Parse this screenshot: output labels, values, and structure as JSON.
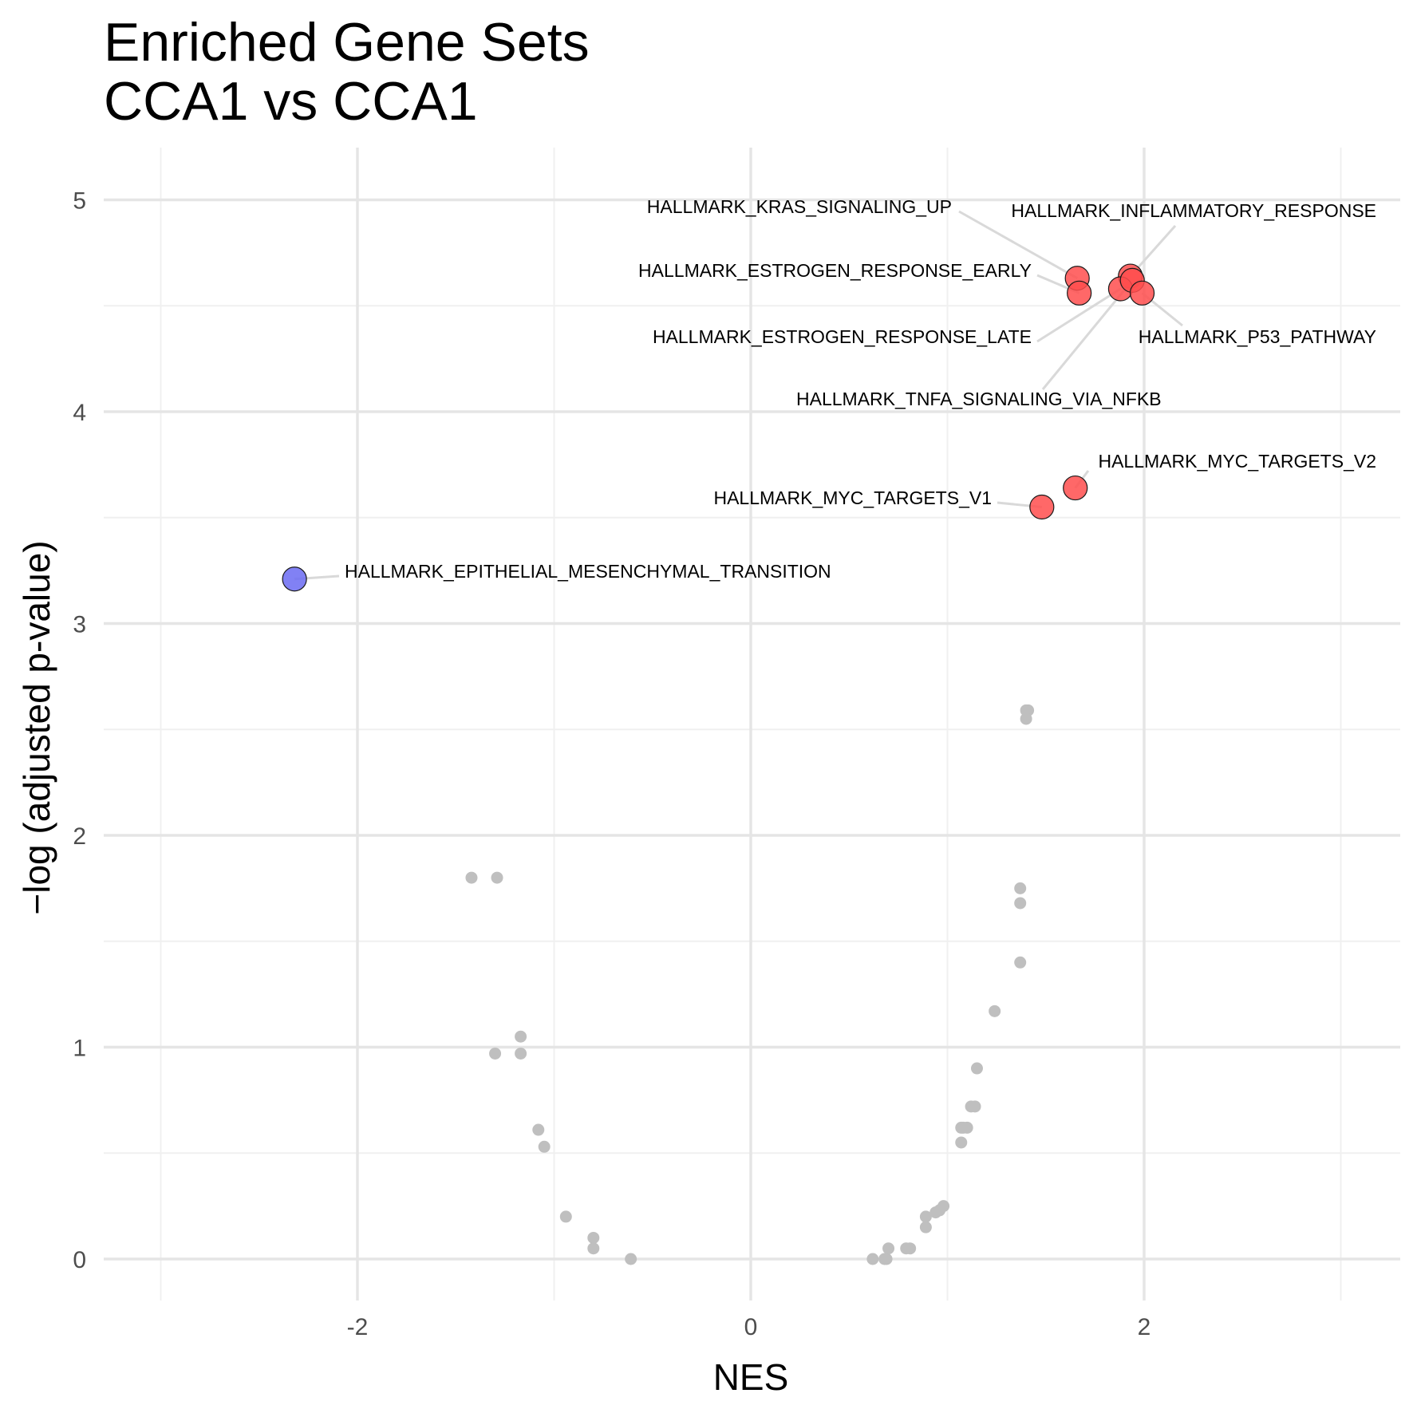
{
  "chart_data": {
    "type": "scatter",
    "title": [
      "Enriched Gene Sets",
      "CCA1 vs CCA1"
    ],
    "xlabel": "NES",
    "ylabel": "−log (adjusted p-value)",
    "xlim": [
      -3.0,
      3.0
    ],
    "ylim": [
      -0.2,
      5.25
    ],
    "xticks": [
      -2,
      0,
      2
    ],
    "xtick_labels": [
      "-2",
      "0",
      "2"
    ],
    "yticks": [
      0,
      1,
      2,
      3,
      4,
      5
    ],
    "ytick_labels": [
      "0",
      "1",
      "2",
      "3",
      "4",
      "5"
    ],
    "grid": true,
    "colors": {
      "up": "#ff4d4d",
      "down": "#6b6bf2",
      "ns": "#bfbfbf"
    },
    "labeled_points": [
      {
        "label": "HALLMARK_KRAS_SIGNALING_UP",
        "x": 1.66,
        "y": 4.63,
        "group": "up"
      },
      {
        "label": "HALLMARK_ESTROGEN_RESPONSE_EARLY",
        "x": 1.67,
        "y": 4.56,
        "group": "up"
      },
      {
        "label": "HALLMARK_INFLAMMATORY_RESPONSE",
        "x": 1.93,
        "y": 4.64,
        "group": "up"
      },
      {
        "label": "HALLMARK_ESTROGEN_RESPONSE_LATE",
        "x": 1.88,
        "y": 4.58,
        "group": "up"
      },
      {
        "label": "HALLMARK_TNFA_SIGNALING_VIA_NFKB",
        "x": 1.94,
        "y": 4.62,
        "group": "up"
      },
      {
        "label": "HALLMARK_P53_PATHWAY",
        "x": 1.99,
        "y": 4.56,
        "group": "up"
      },
      {
        "label": "HALLMARK_MYC_TARGETS_V2",
        "x": 1.65,
        "y": 3.64,
        "group": "up"
      },
      {
        "label": "HALLMARK_MYC_TARGETS_V1",
        "x": 1.48,
        "y": 3.55,
        "group": "up"
      },
      {
        "label": "HALLMARK_EPITHELIAL_MESENCHYMAL_TRANSITION",
        "x": -2.32,
        "y": 3.21,
        "group": "down"
      }
    ],
    "other_points": {
      "x": [
        1.41,
        1.4,
        1.4,
        1.37,
        1.37,
        1.37,
        1.24,
        1.15,
        1.14,
        1.12,
        1.1,
        1.08,
        1.07,
        1.07,
        0.98,
        0.96,
        0.94,
        0.89,
        0.89,
        0.81,
        0.79,
        0.7,
        0.69,
        0.68,
        0.62,
        -1.42,
        -1.29,
        -1.3,
        -1.17,
        -1.17,
        -1.08,
        -1.05,
        -0.94,
        -0.8,
        -0.8,
        -0.61
      ],
      "y": [
        2.59,
        2.59,
        2.55,
        1.75,
        1.68,
        1.4,
        1.17,
        0.9,
        0.72,
        0.72,
        0.62,
        0.62,
        0.62,
        0.55,
        0.25,
        0.23,
        0.22,
        0.2,
        0.15,
        0.05,
        0.05,
        0.05,
        0.0,
        0.0,
        0.0,
        1.8,
        1.8,
        0.97,
        0.97,
        1.05,
        0.61,
        0.53,
        0.2,
        0.1,
        0.05,
        0.0
      ]
    }
  }
}
